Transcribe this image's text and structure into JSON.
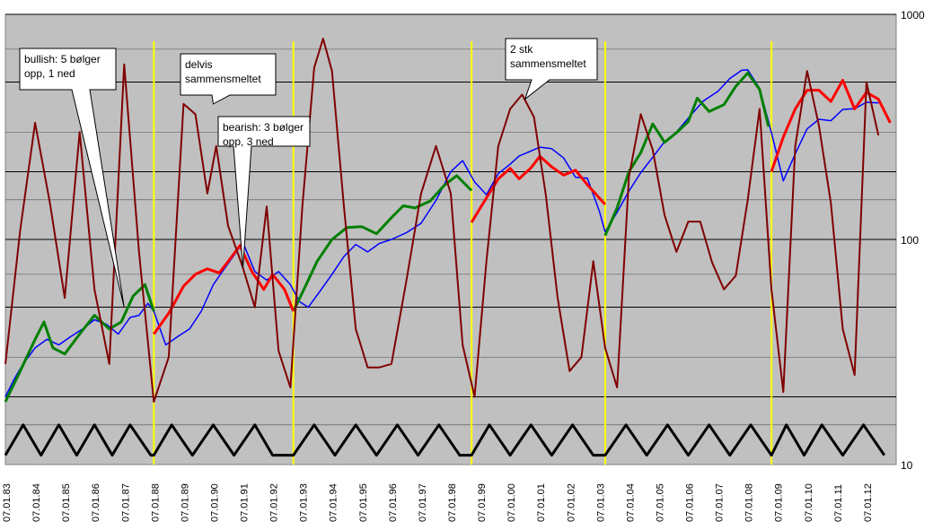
{
  "chart_data": {
    "type": "line",
    "title": "",
    "xlabel": "",
    "ylabel": "",
    "y_scale": "log",
    "ylim": [
      10,
      1000
    ],
    "y_ticks": [
      "10",
      "100",
      "1000"
    ],
    "x_ticks": [
      "07.01.83",
      "07.01.84",
      "07.01.85",
      "07.01.86",
      "07.01.87",
      "07.01.88",
      "07.01.89",
      "07.01.90",
      "07.01.91",
      "07.01.92",
      "07.01.93",
      "07.01.94",
      "07.01.95",
      "07.01.96",
      "07.01.97",
      "07.01.98",
      "07.01.99",
      "07.01.00",
      "07.01.01",
      "07.01.02",
      "07.01.03",
      "07.01.04",
      "07.01.05",
      "07.01.06",
      "07.01.07",
      "07.01.08",
      "07.01.09",
      "07.01.10",
      "07.01.11",
      "07.01.12"
    ],
    "plot_background": "#c0c0c0",
    "grid": true,
    "vertical_markers_year": [
      1988.0,
      1992.7,
      1998.7,
      2003.2,
      2008.8
    ],
    "colors": {
      "index": "#0000ff",
      "up_trend": "#008000",
      "down_trend": "#ff0000",
      "oscillator": "#800000",
      "cycle": "#000000",
      "markers": "#ffff00"
    },
    "series": [
      {
        "key": "index",
        "x": [
          1983.0,
          1983.3,
          1983.6,
          1984.0,
          1984.4,
          1984.8,
          1985.2,
          1985.6,
          1986.0,
          1986.4,
          1986.8,
          1987.2,
          1987.5,
          1987.8,
          1988.0,
          1988.4,
          1988.8,
          1989.2,
          1989.6,
          1990.0,
          1990.4,
          1990.7,
          1991.0,
          1991.4,
          1991.8,
          1992.2,
          1992.6,
          1992.9,
          1993.2,
          1993.6,
          1994.0,
          1994.4,
          1994.8,
          1995.2,
          1995.6,
          1996.0,
          1996.5,
          1997.0,
          1997.5,
          1998.0,
          1998.4,
          1998.8,
          1999.2,
          1999.6,
          2000.0,
          2000.3,
          2000.6,
          2001.0,
          2001.4,
          2001.8,
          2002.2,
          2002.6,
          2003.0,
          2003.2,
          2003.6,
          2004.0,
          2004.4,
          2004.8,
          2005.2,
          2005.6,
          2006.0,
          2006.5,
          2007.0,
          2007.4,
          2007.8,
          2008.0,
          2008.4,
          2008.8,
          2009.2,
          2009.6,
          2010.0,
          2010.4,
          2010.8,
          2011.2,
          2011.6,
          2012.0,
          2012.4
        ],
        "y": [
          20,
          24,
          28,
          33,
          36,
          34,
          37,
          40,
          44,
          42,
          38,
          45,
          46,
          52,
          48,
          34,
          37,
          40,
          48,
          63,
          75,
          85,
          97,
          72,
          66,
          72,
          63,
          53,
          50,
          59,
          70,
          84,
          95,
          88,
          96,
          100,
          107,
          118,
          149,
          200,
          224,
          180,
          158,
          196,
          216,
          235,
          244,
          257,
          253,
          230,
          189,
          187,
          134,
          108,
          132,
          164,
          198,
          232,
          272,
          300,
          346,
          412,
          455,
          519,
          565,
          567,
          469,
          298,
          182,
          240,
          310,
          342,
          337,
          378,
          381,
          407,
          404
        ]
      },
      {
        "key": "up_trend",
        "segments": [
          {
            "x": [
              1983.0,
              1983.5,
              1984.0,
              1984.3,
              1984.6,
              1985.0,
              1985.5,
              1986.0,
              1986.5,
              1986.9,
              1987.3,
              1987.7,
              1988.0
            ],
            "y": [
              19,
              26,
              36,
              43,
              33,
              31,
              38,
              46,
              40,
              43,
              56,
              63,
              48
            ]
          },
          {
            "x": [
              1992.7,
              1993.0,
              1993.5,
              1994.0,
              1994.5,
              1995.0,
              1995.5,
              1996.0,
              1996.4,
              1996.8,
              1997.3,
              1997.8,
              1998.2,
              1998.7
            ],
            "y": [
              48,
              58,
              80,
              100,
              113,
              114,
              106,
              125,
              141,
              138,
              148,
              175,
              192,
              165
            ]
          },
          {
            "x": [
              2003.2,
              2003.6,
              2004.0,
              2004.4,
              2004.8,
              2005.2,
              2005.6,
              2006.0,
              2006.3,
              2006.7,
              2007.2,
              2007.6,
              2008.0,
              2008.4,
              2008.7
            ],
            "y": [
              104,
              138,
              200,
              243,
              326,
              270,
              298,
              334,
              424,
              370,
              397,
              479,
              549,
              464,
              317
            ]
          }
        ]
      },
      {
        "key": "down_trend",
        "segments": [
          {
            "x": [
              1988.0,
              1988.5,
              1989.0,
              1989.4,
              1989.8,
              1990.2,
              1990.6,
              1990.9,
              1991.3,
              1991.7,
              1992.0,
              1992.4,
              1992.7
            ],
            "y": [
              38,
              47,
              62,
              70,
              74,
              71,
              83,
              94,
              72,
              60,
              70,
              60,
              48
            ]
          },
          {
            "x": [
              1998.7,
              1999.2,
              1999.6,
              2000.0,
              2000.3,
              2000.7,
              2001.0,
              2001.4,
              2001.8,
              2002.2,
              2002.6,
              2003.2
            ],
            "y": [
              119,
              153,
              186,
              207,
              186,
              208,
              234,
              210,
              193,
              203,
              175,
              143
            ]
          },
          {
            "x": [
              2008.8,
              2009.2,
              2009.6,
              2010.0,
              2010.4,
              2010.8,
              2011.2,
              2011.6,
              2012.0,
              2012.4,
              2012.8
            ],
            "y": [
              200,
              285,
              380,
              460,
              460,
              410,
              510,
              380,
              450,
              420,
              330
            ]
          }
        ]
      },
      {
        "key": "oscillator",
        "x": [
          1983.0,
          1983.5,
          1984.0,
          1984.5,
          1985.0,
          1985.5,
          1986.0,
          1986.5,
          1987.0,
          1987.5,
          1988.0,
          1988.5,
          1989.0,
          1989.4,
          1989.8,
          1990.1,
          1990.5,
          1991.0,
          1991.4,
          1991.8,
          1992.2,
          1992.6,
          1993.0,
          1993.4,
          1993.7,
          1994.0,
          1994.4,
          1994.8,
          1995.2,
          1995.6,
          1996.0,
          1996.5,
          1997.0,
          1997.5,
          1998.0,
          1998.4,
          1998.8,
          1999.2,
          1999.6,
          2000.0,
          2000.4,
          2000.8,
          2001.2,
          2001.6,
          2002.0,
          2002.4,
          2002.8,
          2003.2,
          2003.6,
          2004.0,
          2004.4,
          2004.8,
          2005.2,
          2005.6,
          2006.0,
          2006.4,
          2006.8,
          2007.2,
          2007.6,
          2008.0,
          2008.4,
          2008.8,
          2009.2,
          2009.6,
          2010.0,
          2010.4,
          2010.8,
          2011.2,
          2011.6,
          2012.0,
          2012.4
        ],
        "y": [
          28,
          110,
          330,
          145,
          55,
          300,
          60,
          28,
          600,
          88,
          19,
          30,
          400,
          360,
          160,
          260,
          115,
          75,
          50,
          140,
          32,
          22,
          140,
          580,
          780,
          560,
          140,
          40,
          27,
          27,
          28,
          65,
          160,
          260,
          160,
          34,
          20,
          80,
          260,
          380,
          440,
          350,
          158,
          55,
          26,
          30,
          80,
          33,
          22,
          190,
          360,
          250,
          128,
          88,
          120,
          120,
          79,
          60,
          69,
          150,
          380,
          60,
          21,
          260,
          560,
          320,
          145,
          40,
          25,
          500,
          290
        ]
      },
      {
        "key": "cycle",
        "x": [
          1983.0,
          1983.6,
          1984.2,
          1984.8,
          1985.4,
          1986.0,
          1986.6,
          1987.2,
          1987.9,
          1988.0,
          1988.6,
          1989.3,
          1990.0,
          1990.7,
          1991.4,
          1992.0,
          1992.7,
          1993.4,
          1994.1,
          1994.8,
          1995.5,
          1996.2,
          1996.9,
          1997.6,
          1998.3,
          1998.7,
          1999.3,
          2000.0,
          2000.7,
          2001.4,
          2002.1,
          2002.8,
          2003.2,
          2003.9,
          2004.6,
          2005.3,
          2006.0,
          2006.7,
          2007.4,
          2008.1,
          2008.8,
          2009.3,
          2009.9,
          2010.5,
          2011.2,
          2011.9,
          2012.6
        ],
        "y": [
          11,
          15,
          11,
          15,
          11,
          15,
          11,
          15,
          11,
          11,
          15,
          11,
          15,
          11,
          15,
          11,
          11,
          15,
          11,
          15,
          11,
          15,
          11,
          15,
          11,
          11,
          15,
          11,
          15,
          11,
          15,
          11,
          11,
          15,
          11,
          15,
          11,
          15,
          11,
          15,
          11,
          15,
          11,
          15,
          11,
          15,
          11
        ]
      }
    ],
    "annotations": [
      {
        "lines": [
          "bullish: 5 bølger",
          "opp, 1 ned"
        ],
        "target": [
          1987.0,
          50
        ]
      },
      {
        "lines": [
          "delvis",
          "sammensmeltet"
        ],
        "target": [
          1990.0,
          400
        ]
      },
      {
        "lines": [
          "bearish: 3 bølger",
          "opp, 3 ned"
        ],
        "target": [
          1991.0,
          75
        ]
      },
      {
        "lines": [
          "2 stk",
          "sammensmeltet"
        ],
        "target": [
          2000.5,
          420
        ]
      }
    ]
  }
}
